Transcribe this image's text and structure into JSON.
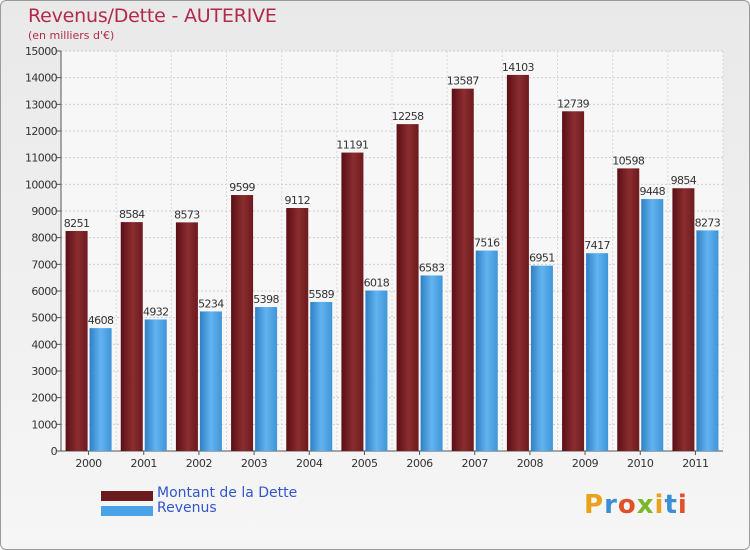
{
  "title": "Revenus/Dette - AUTERIVE",
  "subtitle": "(en milliers d'€)",
  "colors": {
    "dette": "#7a1f24",
    "revenus": "#4aa3e6",
    "title": "#b22a4a",
    "legend_text": "#3355cc"
  },
  "chart_data": {
    "type": "bar",
    "categories": [
      "2000",
      "2001",
      "2002",
      "2003",
      "2004",
      "2005",
      "2006",
      "2007",
      "2008",
      "2009",
      "2010",
      "2011"
    ],
    "series": [
      {
        "name": "Montant de la Dette",
        "values": [
          8251,
          8584,
          8573,
          9599,
          9112,
          11191,
          12258,
          13587,
          14103,
          12739,
          10598,
          9854
        ]
      },
      {
        "name": "Revenus",
        "values": [
          4608,
          4932,
          5234,
          5398,
          5589,
          6018,
          6583,
          7516,
          6951,
          7417,
          9448,
          8273
        ]
      }
    ],
    "ylim": [
      0,
      15000
    ],
    "yticks": [
      0,
      1000,
      2000,
      3000,
      4000,
      5000,
      6000,
      7000,
      8000,
      9000,
      10000,
      11000,
      12000,
      13000,
      14000,
      15000
    ],
    "grid": true,
    "legend_position": "bottom-left"
  },
  "legend": [
    {
      "label": "Montant de la Dette",
      "color": "#6b1a1e"
    },
    {
      "label": "Revenus",
      "color": "#4aa3e6"
    }
  ],
  "logo": {
    "text": "Proxiti"
  }
}
